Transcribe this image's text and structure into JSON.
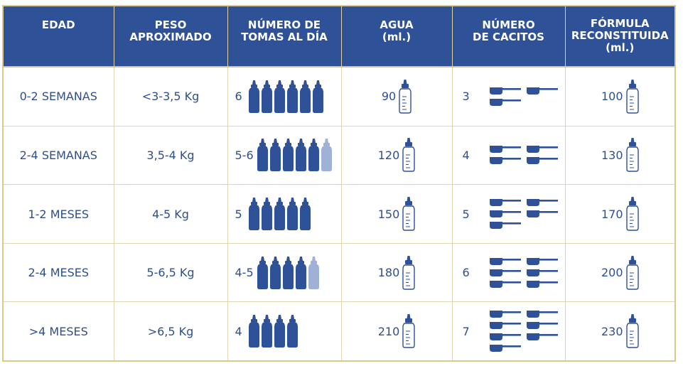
{
  "header": {
    "edad": "EDAD",
    "peso_l1": "PESO",
    "peso_l2": "APROXIMADO",
    "tomas_l1": "NÚMERO DE",
    "tomas_l2": "TOMAS AL DÍA",
    "agua_l1": "AGUA",
    "agua_l2": "(ml.)",
    "cacitos_l1": "NÚMERO",
    "cacitos_l2": "DE CACITOS",
    "formula_l1": "FÓRMULA",
    "formula_l2": "RECONSTITUIDA",
    "formula_l3": "(ml.)"
  },
  "colors": {
    "header_bg": "#2f5197",
    "text": "#2e4f8c",
    "bottle": "#2f5197",
    "bottle_light": "#9fb1d6",
    "frame": "#d9ca8b"
  },
  "rows": [
    {
      "edad": "0-2 SEMANAS",
      "peso": "<3-3,5 Kg",
      "tomas_label": "6",
      "bottles_full": 6,
      "bottles_light": 0,
      "agua": "90",
      "cacitos": "3",
      "scoops": 3,
      "formula": "100"
    },
    {
      "edad": "2-4 SEMANAS",
      "peso": "3,5-4 Kg",
      "tomas_label": "5-6",
      "bottles_full": 5,
      "bottles_light": 1,
      "agua": "120",
      "cacitos": "4",
      "scoops": 4,
      "formula": "130"
    },
    {
      "edad": "1-2 MESES",
      "peso": "4-5 Kg",
      "tomas_label": "5",
      "bottles_full": 5,
      "bottles_light": 0,
      "agua": "150",
      "cacitos": "5",
      "scoops": 5,
      "formula": "170"
    },
    {
      "edad": "2-4 MESES",
      "peso": "5-6,5 Kg",
      "tomas_label": "4-5",
      "bottles_full": 4,
      "bottles_light": 1,
      "agua": "180",
      "cacitos": "6",
      "scoops": 6,
      "formula": "200"
    },
    {
      "edad": ">4 MESES",
      "peso": ">6,5 Kg",
      "tomas_label": "4",
      "bottles_full": 4,
      "bottles_light": 0,
      "agua": "210",
      "cacitos": "7",
      "scoops": 7,
      "formula": "230"
    }
  ]
}
